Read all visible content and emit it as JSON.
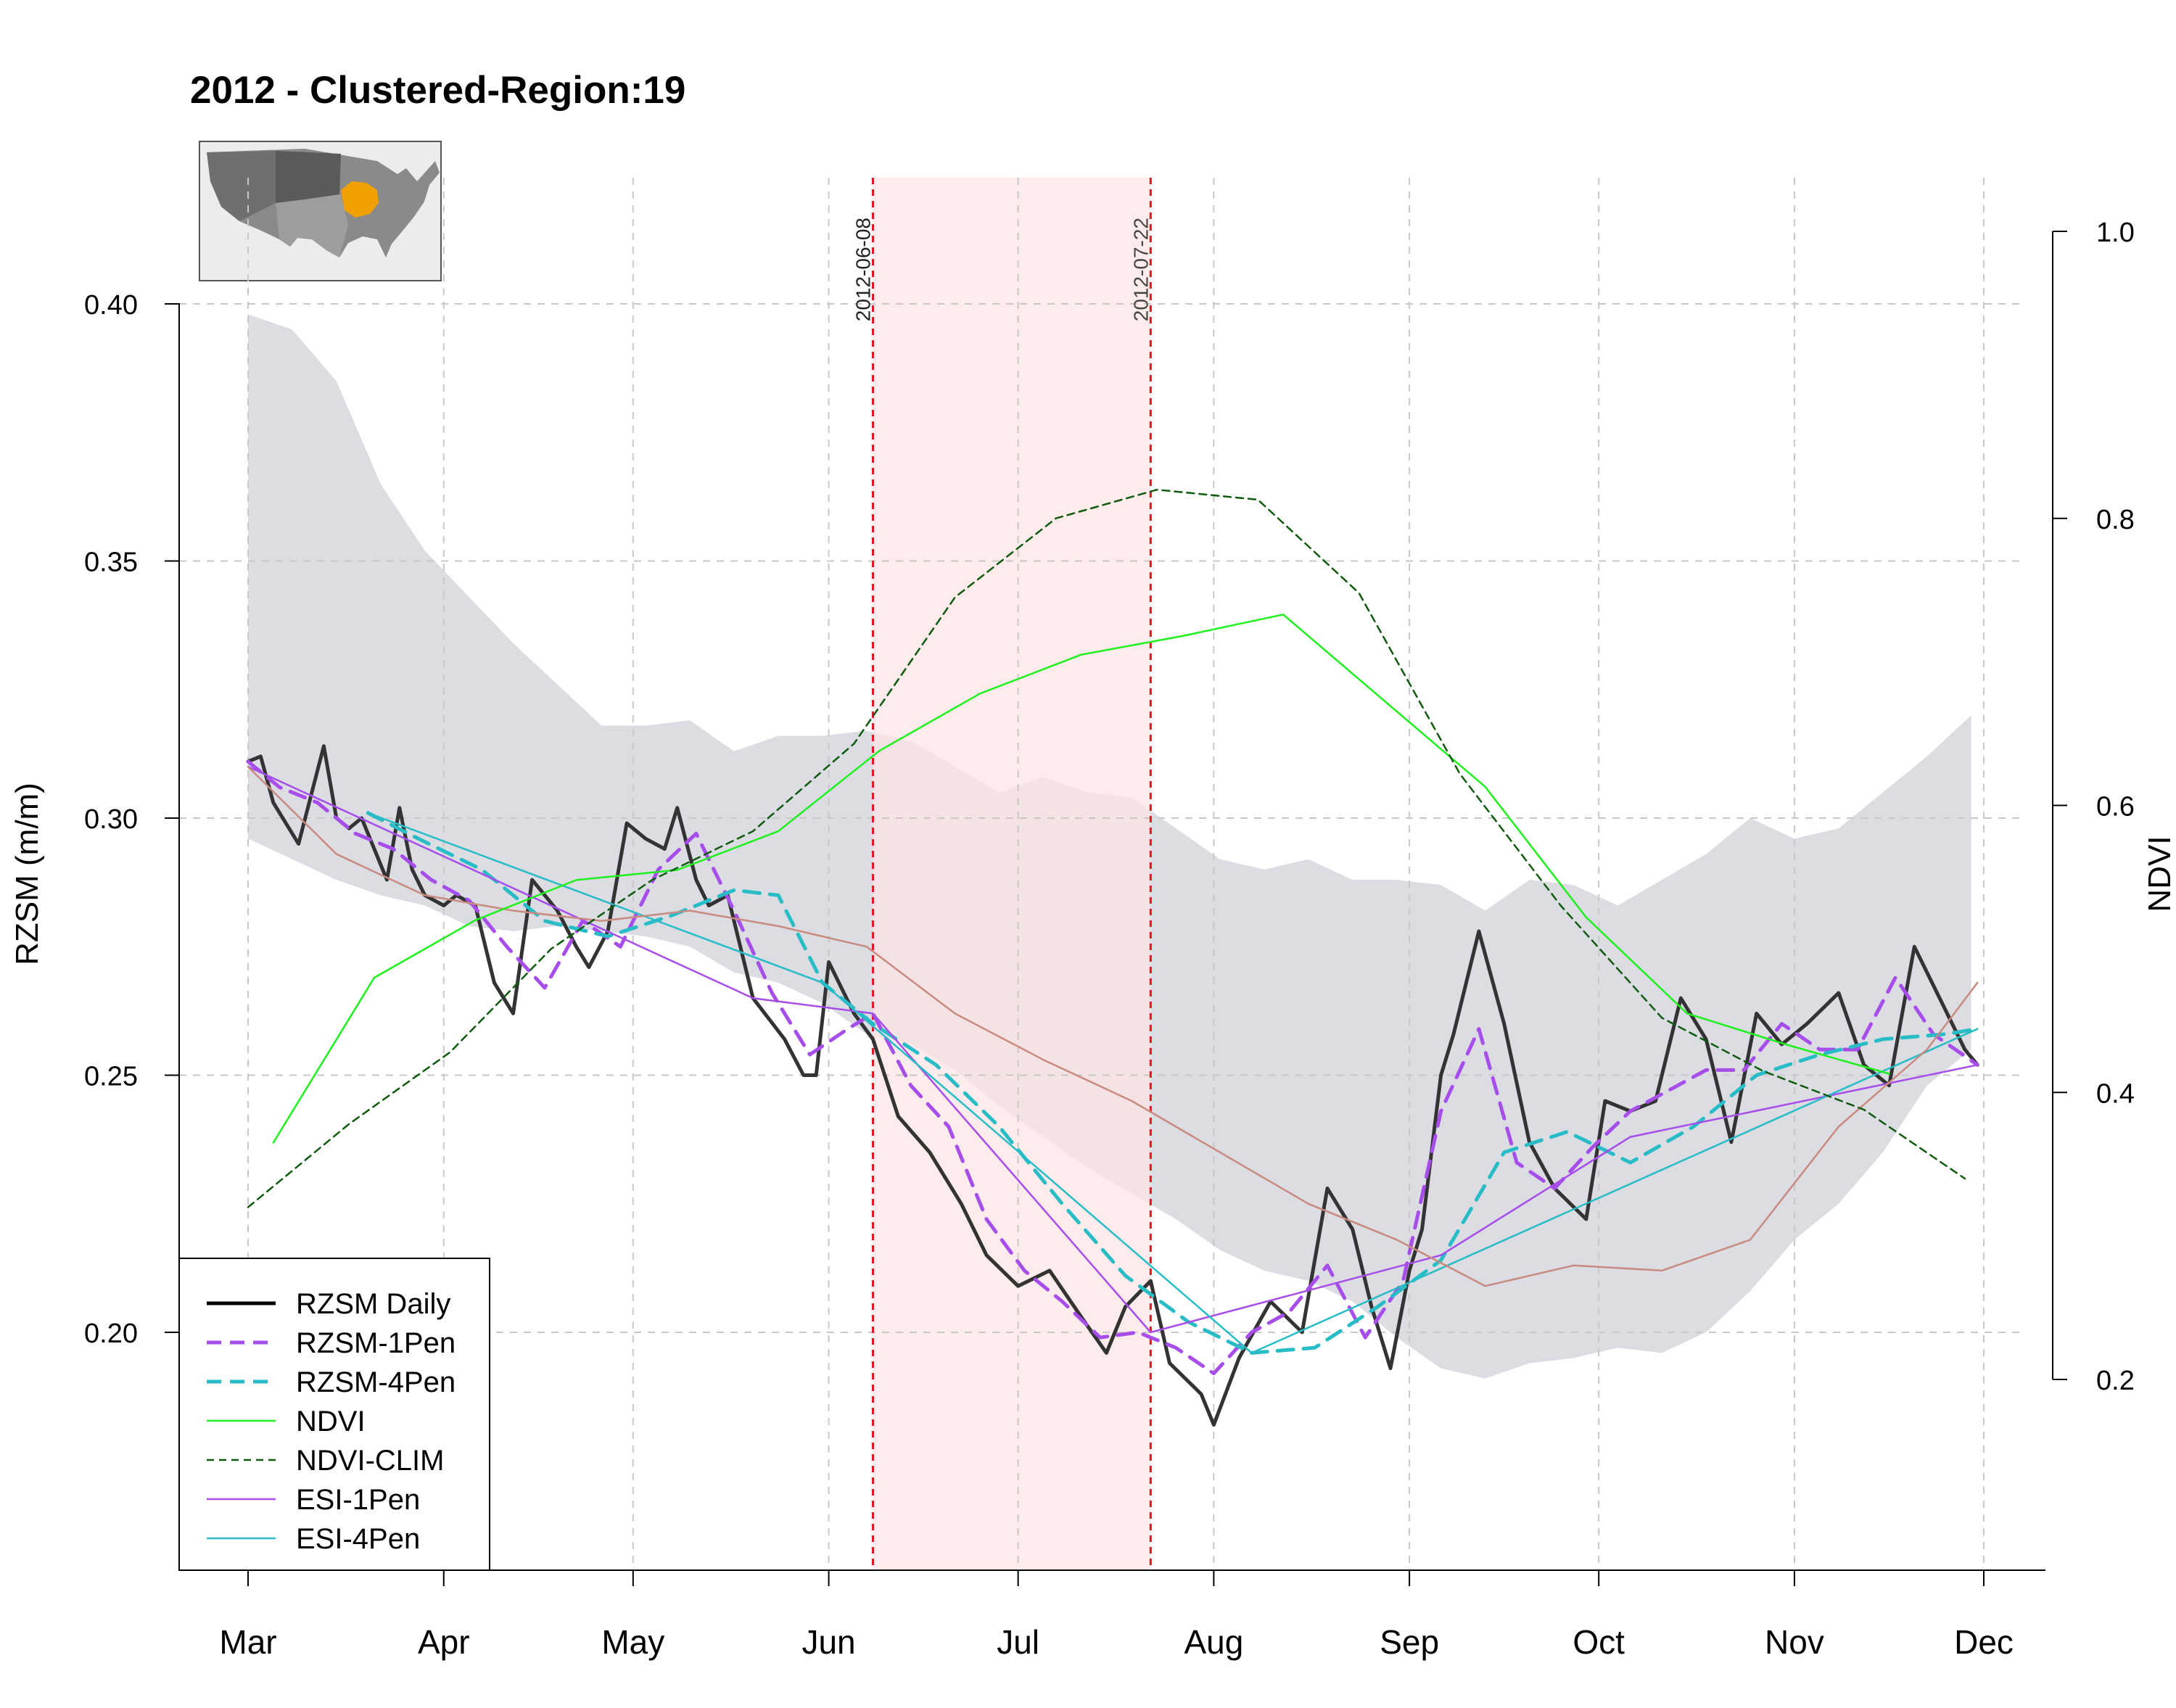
{
  "chart_data": {
    "type": "line",
    "title": "2012 - Clustered-Region:19",
    "ylabel": "RZSM (m/m)",
    "y2label": "NDVI",
    "ylim": [
      0.17,
      0.41
    ],
    "y2lim": [
      0.2,
      1.0
    ],
    "y_ticks": [
      "0.20",
      "0.25",
      "0.30",
      "0.35",
      "0.40"
    ],
    "y2_ticks": [
      "0.2",
      "0.4",
      "0.6",
      "0.8",
      "1.0"
    ],
    "x_ticks": [
      {
        "label": "Mar",
        "date": "2012-03-01"
      },
      {
        "label": "Apr",
        "date": "2012-04-01"
      },
      {
        "label": "May",
        "date": "2012-05-01"
      },
      {
        "label": "Jun",
        "date": "2012-06-01"
      },
      {
        "label": "Jul",
        "date": "2012-07-01"
      },
      {
        "label": "Aug",
        "date": "2012-08-01"
      },
      {
        "label": "Sep",
        "date": "2012-09-01"
      },
      {
        "label": "Oct",
        "date": "2012-10-01"
      },
      {
        "label": "Nov",
        "date": "2012-11-01"
      },
      {
        "label": "Dec",
        "date": "2012-12-01"
      }
    ],
    "grid": true,
    "legend_position": "bottom-left",
    "inset_map": {
      "highlight_color": "#f0a000"
    },
    "drought_period": {
      "start": "2012-06-08",
      "end": "2012-07-22",
      "start_label": "2012-06-08",
      "end_label": "2012-07-22",
      "fill_color": "#fde4e4",
      "line_color": "#e8141e"
    },
    "band": {
      "color": "#dcdce3",
      "upper": [
        [
          "2012-03-01",
          0.398
        ],
        [
          "2012-03-08",
          0.395
        ],
        [
          "2012-03-15",
          0.385
        ],
        [
          "2012-03-22",
          0.365
        ],
        [
          "2012-03-29",
          0.352
        ],
        [
          "2012-04-05",
          0.343
        ],
        [
          "2012-04-12",
          0.334
        ],
        [
          "2012-04-19",
          0.326
        ],
        [
          "2012-04-26",
          0.318
        ],
        [
          "2012-05-03",
          0.318
        ],
        [
          "2012-05-10",
          0.319
        ],
        [
          "2012-05-17",
          0.313
        ],
        [
          "2012-05-24",
          0.316
        ],
        [
          "2012-05-31",
          0.316
        ],
        [
          "2012-06-07",
          0.317
        ],
        [
          "2012-06-14",
          0.315
        ],
        [
          "2012-06-21",
          0.31
        ],
        [
          "2012-06-28",
          0.305
        ],
        [
          "2012-07-05",
          0.308
        ],
        [
          "2012-07-12",
          0.305
        ],
        [
          "2012-07-19",
          0.304
        ],
        [
          "2012-07-26",
          0.298
        ],
        [
          "2012-08-02",
          0.292
        ],
        [
          "2012-08-09",
          0.29
        ],
        [
          "2012-08-16",
          0.292
        ],
        [
          "2012-08-23",
          0.288
        ],
        [
          "2012-08-30",
          0.288
        ],
        [
          "2012-09-06",
          0.287
        ],
        [
          "2012-09-13",
          0.282
        ],
        [
          "2012-09-20",
          0.288
        ],
        [
          "2012-09-27",
          0.287
        ],
        [
          "2012-10-04",
          0.283
        ],
        [
          "2012-10-11",
          0.288
        ],
        [
          "2012-10-18",
          0.293
        ],
        [
          "2012-10-25",
          0.3
        ],
        [
          "2012-11-01",
          0.296
        ],
        [
          "2012-11-08",
          0.298
        ],
        [
          "2012-11-15",
          0.305
        ],
        [
          "2012-11-22",
          0.312
        ],
        [
          "2012-11-29",
          0.32
        ]
      ],
      "lower": [
        [
          "2012-03-01",
          0.296
        ],
        [
          "2012-03-08",
          0.292
        ],
        [
          "2012-03-15",
          0.288
        ],
        [
          "2012-03-22",
          0.285
        ],
        [
          "2012-03-29",
          0.283
        ],
        [
          "2012-04-05",
          0.279
        ],
        [
          "2012-04-12",
          0.278
        ],
        [
          "2012-04-19",
          0.279
        ],
        [
          "2012-04-26",
          0.278
        ],
        [
          "2012-05-03",
          0.277
        ],
        [
          "2012-05-10",
          0.275
        ],
        [
          "2012-05-17",
          0.27
        ],
        [
          "2012-05-24",
          0.268
        ],
        [
          "2012-05-31",
          0.264
        ],
        [
          "2012-06-07",
          0.258
        ],
        [
          "2012-06-14",
          0.256
        ],
        [
          "2012-06-21",
          0.251
        ],
        [
          "2012-06-28",
          0.244
        ],
        [
          "2012-07-05",
          0.238
        ],
        [
          "2012-07-12",
          0.232
        ],
        [
          "2012-07-19",
          0.227
        ],
        [
          "2012-07-26",
          0.222
        ],
        [
          "2012-08-02",
          0.216
        ],
        [
          "2012-08-09",
          0.212
        ],
        [
          "2012-08-16",
          0.21
        ],
        [
          "2012-08-23",
          0.206
        ],
        [
          "2012-08-30",
          0.199
        ],
        [
          "2012-09-06",
          0.193
        ],
        [
          "2012-09-13",
          0.191
        ],
        [
          "2012-09-20",
          0.194
        ],
        [
          "2012-09-27",
          0.195
        ],
        [
          "2012-10-04",
          0.197
        ],
        [
          "2012-10-11",
          0.196
        ],
        [
          "2012-10-18",
          0.2
        ],
        [
          "2012-10-25",
          0.208
        ],
        [
          "2012-11-01",
          0.218
        ],
        [
          "2012-11-08",
          0.225
        ],
        [
          "2012-11-15",
          0.235
        ],
        [
          "2012-11-22",
          0.248
        ],
        [
          "2012-11-29",
          0.255
        ]
      ]
    },
    "series": [
      {
        "name": "RZSM Daily",
        "axis": "left",
        "color": "#333333",
        "style": "solid",
        "width": 5,
        "x": [
          "2012-03-01",
          "2012-03-03",
          "2012-03-05",
          "2012-03-09",
          "2012-03-13",
          "2012-03-15",
          "2012-03-17",
          "2012-03-19",
          "2012-03-23",
          "2012-03-25",
          "2012-03-27",
          "2012-03-29",
          "2012-04-01",
          "2012-04-03",
          "2012-04-06",
          "2012-04-09",
          "2012-04-12",
          "2012-04-15",
          "2012-04-19",
          "2012-04-22",
          "2012-04-24",
          "2012-04-27",
          "2012-04-30",
          "2012-05-03",
          "2012-05-06",
          "2012-05-08",
          "2012-05-11",
          "2012-05-13",
          "2012-05-16",
          "2012-05-20",
          "2012-05-25",
          "2012-05-28",
          "2012-05-30",
          "2012-06-01",
          "2012-06-05",
          "2012-06-08",
          "2012-06-12",
          "2012-06-17",
          "2012-06-22",
          "2012-06-26",
          "2012-07-01",
          "2012-07-06",
          "2012-07-11",
          "2012-07-15",
          "2012-07-18",
          "2012-07-22",
          "2012-07-25",
          "2012-07-30",
          "2012-08-01",
          "2012-08-05",
          "2012-08-10",
          "2012-08-15",
          "2012-08-19",
          "2012-08-23",
          "2012-08-26",
          "2012-08-29",
          "2012-09-01",
          "2012-09-03",
          "2012-09-06",
          "2012-09-08",
          "2012-09-12",
          "2012-09-16",
          "2012-09-20",
          "2012-09-24",
          "2012-09-29",
          "2012-10-02",
          "2012-10-06",
          "2012-10-10",
          "2012-10-14",
          "2012-10-18",
          "2012-10-22",
          "2012-10-26",
          "2012-10-30",
          "2012-11-03",
          "2012-11-08",
          "2012-11-12",
          "2012-11-16",
          "2012-11-20",
          "2012-11-24",
          "2012-11-28",
          "2012-11-30"
        ],
        "y": [
          0.311,
          0.312,
          0.303,
          0.295,
          0.314,
          0.3,
          0.298,
          0.3,
          0.288,
          0.302,
          0.29,
          0.285,
          0.283,
          0.285,
          0.283,
          0.268,
          0.262,
          0.288,
          0.282,
          0.275,
          0.271,
          0.278,
          0.299,
          0.296,
          0.294,
          0.302,
          0.288,
          0.283,
          0.285,
          0.265,
          0.257,
          0.25,
          0.25,
          0.272,
          0.262,
          0.257,
          0.242,
          0.235,
          0.225,
          0.215,
          0.209,
          0.212,
          0.203,
          0.196,
          0.205,
          0.21,
          0.194,
          0.188,
          0.182,
          0.195,
          0.206,
          0.2,
          0.228,
          0.22,
          0.205,
          0.193,
          0.212,
          0.22,
          0.25,
          0.258,
          0.278,
          0.26,
          0.237,
          0.228,
          0.222,
          0.245,
          0.243,
          0.245,
          0.265,
          0.257,
          0.237,
          0.262,
          0.256,
          0.26,
          0.266,
          0.252,
          0.248,
          0.275,
          0.265,
          0.255,
          0.252
        ]
      },
      {
        "name": "RZSM-1Pen",
        "axis": "left",
        "color": "#a64dea",
        "style": "dashed",
        "width": 5,
        "x": [
          "2012-03-01",
          "2012-03-06",
          "2012-03-12",
          "2012-03-18",
          "2012-03-24",
          "2012-03-30",
          "2012-04-05",
          "2012-04-11",
          "2012-04-17",
          "2012-04-23",
          "2012-04-29",
          "2012-05-05",
          "2012-05-11",
          "2012-05-17",
          "2012-05-23",
          "2012-05-29",
          "2012-06-04",
          "2012-06-08",
          "2012-06-14",
          "2012-06-20",
          "2012-06-26",
          "2012-07-02",
          "2012-07-08",
          "2012-07-14",
          "2012-07-20",
          "2012-07-26",
          "2012-08-01",
          "2012-08-07",
          "2012-08-13",
          "2012-08-19",
          "2012-08-25",
          "2012-08-31",
          "2012-09-06",
          "2012-09-12",
          "2012-09-18",
          "2012-09-24",
          "2012-09-30",
          "2012-10-06",
          "2012-10-12",
          "2012-10-18",
          "2012-10-24",
          "2012-10-30",
          "2012-11-05",
          "2012-11-11",
          "2012-11-17",
          "2012-11-23",
          "2012-11-30"
        ],
        "y": [
          0.311,
          0.306,
          0.303,
          0.297,
          0.294,
          0.288,
          0.284,
          0.275,
          0.267,
          0.28,
          0.275,
          0.29,
          0.297,
          0.282,
          0.266,
          0.254,
          0.259,
          0.262,
          0.248,
          0.24,
          0.222,
          0.212,
          0.206,
          0.199,
          0.2,
          0.197,
          0.192,
          0.2,
          0.204,
          0.213,
          0.199,
          0.21,
          0.243,
          0.259,
          0.233,
          0.228,
          0.236,
          0.243,
          0.247,
          0.251,
          0.251,
          0.26,
          0.255,
          0.255,
          0.269,
          0.258,
          0.252
        ]
      },
      {
        "name": "RZSM-4Pen",
        "axis": "left",
        "color": "#27bcc6",
        "style": "dashed",
        "width": 5,
        "x": [
          "2012-03-20",
          "2012-03-28",
          "2012-04-07",
          "2012-04-17",
          "2012-04-27",
          "2012-05-07",
          "2012-05-17",
          "2012-05-24",
          "2012-05-31",
          "2012-06-08",
          "2012-06-18",
          "2012-06-28",
          "2012-07-08",
          "2012-07-18",
          "2012-07-28",
          "2012-08-07",
          "2012-08-17",
          "2012-08-27",
          "2012-09-06",
          "2012-09-16",
          "2012-09-26",
          "2012-10-06",
          "2012-10-16",
          "2012-10-26",
          "2012-11-05",
          "2012-11-15",
          "2012-11-25",
          "2012-11-30"
        ],
        "y": [
          0.301,
          0.296,
          0.29,
          0.28,
          0.277,
          0.281,
          0.286,
          0.285,
          0.268,
          0.26,
          0.252,
          0.24,
          0.225,
          0.211,
          0.202,
          0.196,
          0.197,
          0.205,
          0.214,
          0.235,
          0.239,
          0.233,
          0.24,
          0.25,
          0.254,
          0.257,
          0.258,
          0.259
        ]
      },
      {
        "name": "ESI-1Pen",
        "axis": "left",
        "color": "#a64dea",
        "style": "solid",
        "width": 2.5,
        "x": [
          "2012-03-01",
          "2012-05-20",
          "2012-06-08",
          "2012-07-22",
          "2012-09-06",
          "2012-10-06",
          "2012-11-30"
        ],
        "y": [
          0.31,
          0.265,
          0.262,
          0.2,
          0.215,
          0.238,
          0.252
        ]
      },
      {
        "name": "ESI-4Pen",
        "axis": "left",
        "color": "#27bcc6",
        "style": "solid",
        "width": 2.5,
        "x": [
          "2012-03-20",
          "2012-05-31",
          "2012-08-07",
          "2012-11-30"
        ],
        "y": [
          0.301,
          0.268,
          0.196,
          0.259
        ]
      },
      {
        "name": "",
        "axis": "left",
        "color": "#c98a7f",
        "style": "solid",
        "width": 2.5,
        "x": [
          "2012-03-01",
          "2012-03-15",
          "2012-03-29",
          "2012-04-12",
          "2012-04-26",
          "2012-05-10",
          "2012-05-24",
          "2012-06-07",
          "2012-06-21",
          "2012-07-05",
          "2012-07-19",
          "2012-08-02",
          "2012-08-16",
          "2012-08-30",
          "2012-09-13",
          "2012-09-27",
          "2012-10-11",
          "2012-10-25",
          "2012-11-08",
          "2012-11-22",
          "2012-11-30"
        ],
        "y": [
          0.31,
          0.293,
          0.285,
          0.282,
          0.28,
          0.282,
          0.279,
          0.275,
          0.262,
          0.253,
          0.245,
          0.235,
          0.225,
          0.218,
          0.209,
          0.213,
          0.212,
          0.218,
          0.24,
          0.255,
          0.268
        ]
      },
      {
        "name": "NDVI",
        "axis": "right",
        "color": "#1ef01e",
        "style": "solid",
        "width": 2.5,
        "x": [
          "2012-03-05",
          "2012-03-21",
          "2012-04-06",
          "2012-04-22",
          "2012-05-08",
          "2012-05-24",
          "2012-06-09",
          "2012-06-25",
          "2012-07-11",
          "2012-07-27",
          "2012-08-12",
          "2012-08-28",
          "2012-09-13",
          "2012-09-29",
          "2012-10-15",
          "2012-10-31",
          "2012-11-16"
        ],
        "y": [
          0.365,
          0.48,
          0.52,
          0.548,
          0.555,
          0.582,
          0.638,
          0.678,
          0.705,
          0.718,
          0.733,
          0.673,
          0.613,
          0.522,
          0.455,
          0.433,
          0.413
        ]
      },
      {
        "name": "NDVI-CLIM",
        "axis": "right",
        "color": "#0f5a0f",
        "style": "dashed",
        "width": 2.5,
        "x": [
          "2012-03-01",
          "2012-03-17",
          "2012-04-02",
          "2012-04-18",
          "2012-05-04",
          "2012-05-20",
          "2012-06-05",
          "2012-06-21",
          "2012-07-07",
          "2012-07-23",
          "2012-08-08",
          "2012-08-24",
          "2012-09-09",
          "2012-09-25",
          "2012-10-11",
          "2012-10-27",
          "2012-11-12",
          "2012-11-28"
        ],
        "y": [
          0.32,
          0.378,
          0.428,
          0.5,
          0.548,
          0.582,
          0.643,
          0.745,
          0.8,
          0.82,
          0.813,
          0.748,
          0.622,
          0.53,
          0.452,
          0.415,
          0.388,
          0.34
        ]
      }
    ]
  },
  "legend": {
    "items": [
      {
        "label": "RZSM Daily",
        "color": "#000000",
        "style": "solid",
        "width": 5
      },
      {
        "label": "RZSM-1Pen",
        "color": "#a64dea",
        "style": "dashed",
        "width": 5
      },
      {
        "label": "RZSM-4Pen",
        "color": "#27bcc6",
        "style": "dashed",
        "width": 5
      },
      {
        "label": "NDVI",
        "color": "#1ef01e",
        "style": "solid",
        "width": 2.5
      },
      {
        "label": "NDVI-CLIM",
        "color": "#0f5a0f",
        "style": "dashed",
        "width": 2.5
      },
      {
        "label": "ESI-1Pen",
        "color": "#a64dea",
        "style": "solid",
        "width": 2.5
      },
      {
        "label": "ESI-4Pen",
        "color": "#27bcc6",
        "style": "solid",
        "width": 2.5
      }
    ]
  }
}
